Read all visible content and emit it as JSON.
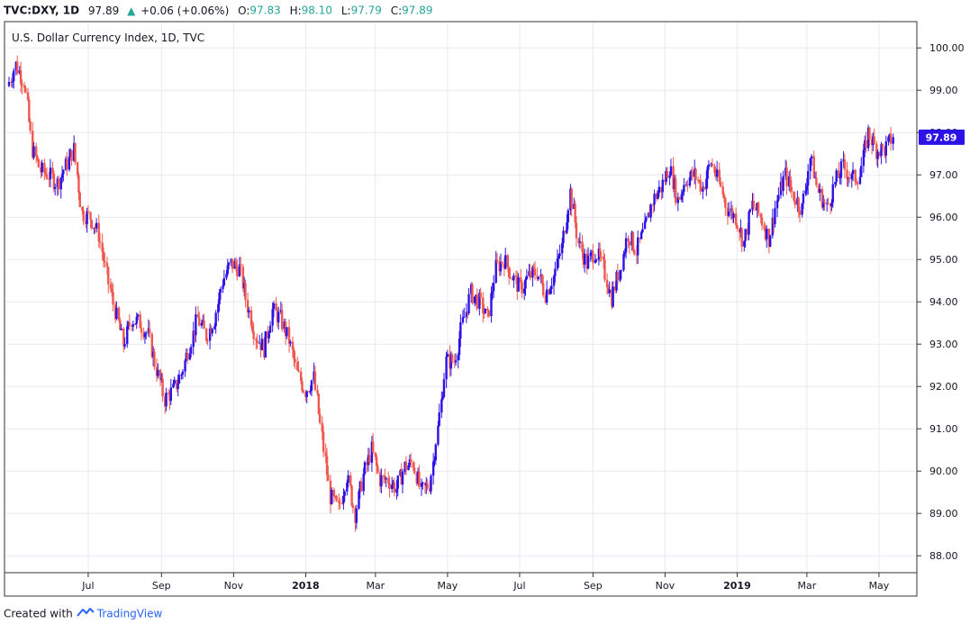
{
  "header": {
    "symbol": "TVC:DXY, 1D",
    "price": "97.89",
    "change": "+0.06 (+0.06%)",
    "open_label": "O:",
    "open": "97.83",
    "high_label": "H:",
    "high": "98.10",
    "low_label": "L:",
    "low": "97.79",
    "close_label": "C:",
    "close": "97.89"
  },
  "footer": {
    "created_with": "Created with",
    "brand": "TradingView"
  },
  "colors": {
    "up": "#2c12e6",
    "down": "#f0584f",
    "price_tag": "#2c12e6",
    "grid": "#e6eaf0"
  },
  "chart_data": {
    "type": "candlestick",
    "title": "U.S. Dollar Currency Index, 1D, TVC",
    "last_price_label": "97.89",
    "y_ticks": [
      "100.00",
      "99.00",
      "98.00",
      "97.00",
      "96.00",
      "95.00",
      "94.00",
      "93.00",
      "92.00",
      "91.00",
      "90.00",
      "89.00",
      "88.00"
    ],
    "ylim": [
      87.6,
      100.6
    ],
    "x_ticks": [
      {
        "label": "Jul",
        "date": "2017-07-01",
        "bold": false
      },
      {
        "label": "Sep",
        "date": "2017-09-01",
        "bold": false
      },
      {
        "label": "Nov",
        "date": "2017-11-01",
        "bold": false
      },
      {
        "label": "2018",
        "date": "2018-01-01",
        "bold": true
      },
      {
        "label": "Mar",
        "date": "2018-03-01",
        "bold": false
      },
      {
        "label": "May",
        "date": "2018-05-01",
        "bold": false
      },
      {
        "label": "Jul",
        "date": "2018-07-01",
        "bold": false
      },
      {
        "label": "Sep",
        "date": "2018-09-01",
        "bold": false
      },
      {
        "label": "Nov",
        "date": "2018-11-01",
        "bold": false
      },
      {
        "label": "2019",
        "date": "2019-01-01",
        "bold": true
      },
      {
        "label": "Mar",
        "date": "2019-03-01",
        "bold": false
      },
      {
        "label": "May",
        "date": "2019-05-01",
        "bold": false
      }
    ],
    "xlim": [
      "2017-04-25",
      "2019-05-14"
    ],
    "grid": true,
    "series": [
      {
        "date": "2017-04-25",
        "close": 99.1
      },
      {
        "date": "2017-05-02",
        "close": 99.6
      },
      {
        "date": "2017-05-09",
        "close": 99.2
      },
      {
        "date": "2017-05-16",
        "close": 97.6
      },
      {
        "date": "2017-05-23",
        "close": 97.1
      },
      {
        "date": "2017-05-30",
        "close": 97.0
      },
      {
        "date": "2017-06-06",
        "close": 96.8
      },
      {
        "date": "2017-06-13",
        "close": 97.2
      },
      {
        "date": "2017-06-20",
        "close": 97.6
      },
      {
        "date": "2017-06-27",
        "close": 96.1
      },
      {
        "date": "2017-07-04",
        "close": 96.0
      },
      {
        "date": "2017-07-11",
        "close": 95.6
      },
      {
        "date": "2017-07-18",
        "close": 94.6
      },
      {
        "date": "2017-07-25",
        "close": 93.8
      },
      {
        "date": "2017-08-01",
        "close": 93.0
      },
      {
        "date": "2017-08-08",
        "close": 93.6
      },
      {
        "date": "2017-08-15",
        "close": 93.5
      },
      {
        "date": "2017-08-22",
        "close": 93.2
      },
      {
        "date": "2017-08-29",
        "close": 92.4
      },
      {
        "date": "2017-09-05",
        "close": 91.7
      },
      {
        "date": "2017-09-12",
        "close": 91.9
      },
      {
        "date": "2017-09-19",
        "close": 92.3
      },
      {
        "date": "2017-09-26",
        "close": 93.0
      },
      {
        "date": "2017-10-03",
        "close": 93.6
      },
      {
        "date": "2017-10-10",
        "close": 93.2
      },
      {
        "date": "2017-10-17",
        "close": 93.6
      },
      {
        "date": "2017-10-24",
        "close": 94.5
      },
      {
        "date": "2017-10-31",
        "close": 94.9
      },
      {
        "date": "2017-11-07",
        "close": 94.8
      },
      {
        "date": "2017-11-14",
        "close": 93.9
      },
      {
        "date": "2017-11-21",
        "close": 93.2
      },
      {
        "date": "2017-11-28",
        "close": 92.9
      },
      {
        "date": "2017-12-05",
        "close": 93.8
      },
      {
        "date": "2017-12-12",
        "close": 93.6
      },
      {
        "date": "2017-12-19",
        "close": 93.1
      },
      {
        "date": "2017-12-26",
        "close": 92.3
      },
      {
        "date": "2018-01-02",
        "close": 91.9
      },
      {
        "date": "2018-01-09",
        "close": 92.2
      },
      {
        "date": "2018-01-16",
        "close": 90.8
      },
      {
        "date": "2018-01-23",
        "close": 89.4
      },
      {
        "date": "2018-01-30",
        "close": 89.1
      },
      {
        "date": "2018-02-06",
        "close": 89.9
      },
      {
        "date": "2018-02-13",
        "close": 89.0
      },
      {
        "date": "2018-02-20",
        "close": 89.9
      },
      {
        "date": "2018-02-27",
        "close": 90.5
      },
      {
        "date": "2018-03-06",
        "close": 89.8
      },
      {
        "date": "2018-03-13",
        "close": 89.8
      },
      {
        "date": "2018-03-20",
        "close": 89.6
      },
      {
        "date": "2018-03-27",
        "close": 90.1
      },
      {
        "date": "2018-04-03",
        "close": 90.2
      },
      {
        "date": "2018-04-10",
        "close": 89.5
      },
      {
        "date": "2018-04-17",
        "close": 89.7
      },
      {
        "date": "2018-04-24",
        "close": 91.0
      },
      {
        "date": "2018-05-01",
        "close": 92.6
      },
      {
        "date": "2018-05-08",
        "close": 92.6
      },
      {
        "date": "2018-05-15",
        "close": 93.5
      },
      {
        "date": "2018-05-22",
        "close": 94.2
      },
      {
        "date": "2018-05-29",
        "close": 94.0
      },
      {
        "date": "2018-06-05",
        "close": 93.6
      },
      {
        "date": "2018-06-12",
        "close": 94.8
      },
      {
        "date": "2018-06-19",
        "close": 95.0
      },
      {
        "date": "2018-06-26",
        "close": 94.6
      },
      {
        "date": "2018-07-03",
        "close": 94.3
      },
      {
        "date": "2018-07-10",
        "close": 94.6
      },
      {
        "date": "2018-07-17",
        "close": 94.7
      },
      {
        "date": "2018-07-24",
        "close": 94.2
      },
      {
        "date": "2018-07-31",
        "close": 94.6
      },
      {
        "date": "2018-08-07",
        "close": 95.3
      },
      {
        "date": "2018-08-14",
        "close": 96.6
      },
      {
        "date": "2018-08-21",
        "close": 95.4
      },
      {
        "date": "2018-08-28",
        "close": 94.9
      },
      {
        "date": "2018-09-04",
        "close": 95.2
      },
      {
        "date": "2018-09-11",
        "close": 94.8
      },
      {
        "date": "2018-09-18",
        "close": 94.1
      },
      {
        "date": "2018-09-25",
        "close": 94.8
      },
      {
        "date": "2018-10-02",
        "close": 95.6
      },
      {
        "date": "2018-10-09",
        "close": 95.2
      },
      {
        "date": "2018-10-16",
        "close": 95.7
      },
      {
        "date": "2018-10-23",
        "close": 96.4
      },
      {
        "date": "2018-10-30",
        "close": 96.7
      },
      {
        "date": "2018-11-06",
        "close": 97.2
      },
      {
        "date": "2018-11-13",
        "close": 96.4
      },
      {
        "date": "2018-11-20",
        "close": 96.9
      },
      {
        "date": "2018-11-27",
        "close": 97.0
      },
      {
        "date": "2018-12-04",
        "close": 96.7
      },
      {
        "date": "2018-12-11",
        "close": 97.3
      },
      {
        "date": "2018-12-18",
        "close": 96.8
      },
      {
        "date": "2018-12-25",
        "close": 96.2
      },
      {
        "date": "2019-01-01",
        "close": 96.0
      },
      {
        "date": "2019-01-08",
        "close": 95.4
      },
      {
        "date": "2019-01-15",
        "close": 96.3
      },
      {
        "date": "2019-01-22",
        "close": 96.0
      },
      {
        "date": "2019-01-29",
        "close": 95.5
      },
      {
        "date": "2019-02-05",
        "close": 96.4
      },
      {
        "date": "2019-02-12",
        "close": 97.0
      },
      {
        "date": "2019-02-19",
        "close": 96.5
      },
      {
        "date": "2019-02-26",
        "close": 96.2
      },
      {
        "date": "2019-03-05",
        "close": 97.4
      },
      {
        "date": "2019-03-12",
        "close": 96.6
      },
      {
        "date": "2019-03-19",
        "close": 96.2
      },
      {
        "date": "2019-03-26",
        "close": 96.8
      },
      {
        "date": "2019-04-02",
        "close": 97.2
      },
      {
        "date": "2019-04-09",
        "close": 96.9
      },
      {
        "date": "2019-04-16",
        "close": 97.0
      },
      {
        "date": "2019-04-23",
        "close": 98.0
      },
      {
        "date": "2019-04-30",
        "close": 97.6
      },
      {
        "date": "2019-05-07",
        "close": 97.6
      },
      {
        "date": "2019-05-14",
        "close": 97.89
      }
    ]
  }
}
